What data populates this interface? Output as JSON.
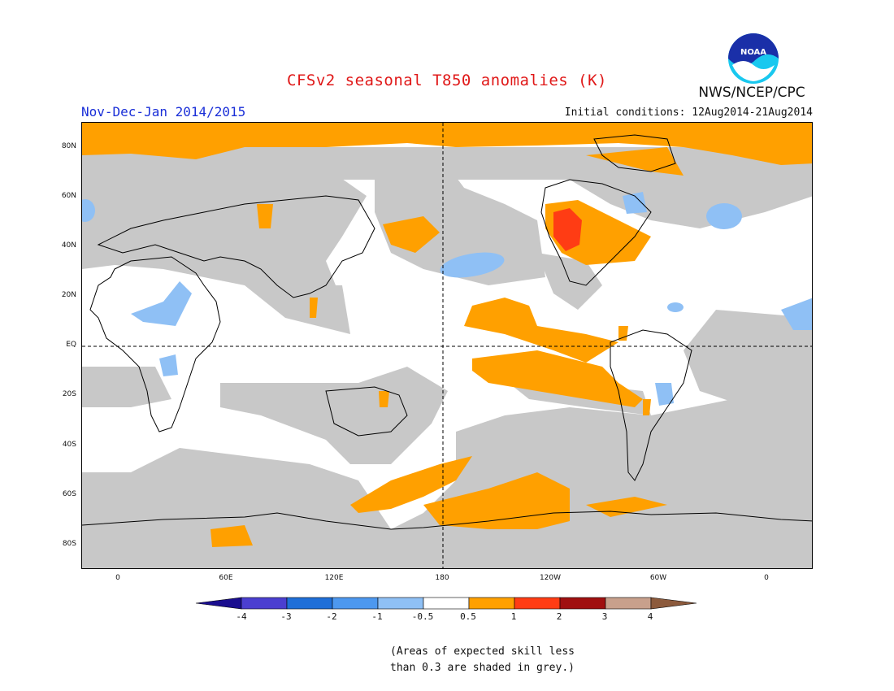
{
  "header": {
    "title": "CFSv2 seasonal T850 anomalies (K)",
    "period": "Nov-Dec-Jan 2014/2015",
    "initial_conditions": "Initial conditions: 12Aug2014-21Aug2014",
    "agency": "NWS/NCEP/CPC",
    "logo_text": "NOAA"
  },
  "map": {
    "projection": "equirectangular",
    "lat_ticks": [
      "80N",
      "60N",
      "40N",
      "20N",
      "EQ",
      "20S",
      "40S",
      "60S",
      "80S"
    ],
    "lon_ticks": [
      "0",
      "60E",
      "120E",
      "180",
      "120W",
      "60W",
      "0"
    ],
    "reference_lines": [
      "EQ",
      "180"
    ],
    "skill_mask_color": "#c8c8c8"
  },
  "colorbar": {
    "labels": [
      "-4",
      "-3",
      "-2",
      "-1",
      "-0.5",
      "0.5",
      "1",
      "2",
      "3",
      "4"
    ],
    "colors": [
      "#1a0e8f",
      "#4b3fd0",
      "#1f6fd8",
      "#4d98ef",
      "#8fc0f5",
      "#ffffff",
      "#ffa000",
      "#ff3c14",
      "#a01010",
      "#c8a08c",
      "#8c5a3c"
    ]
  },
  "footnote": {
    "line1": "(Areas of expected skill less",
    "line2": "than 0.3 are shaded in grey.)"
  }
}
